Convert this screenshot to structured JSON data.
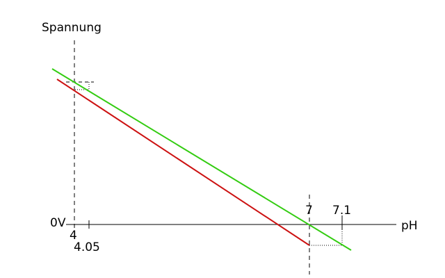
{
  "labels": {
    "y_axis": "Spannung",
    "x_axis": "pH",
    "zero_volt": "0V",
    "tick_4": "4",
    "tick_4_05": "4.05",
    "tick_7": "7",
    "tick_7_1": "7.1"
  },
  "colors": {
    "line_green": "#33cc11",
    "line_red": "#cc1111",
    "axis": "#000000"
  }
}
